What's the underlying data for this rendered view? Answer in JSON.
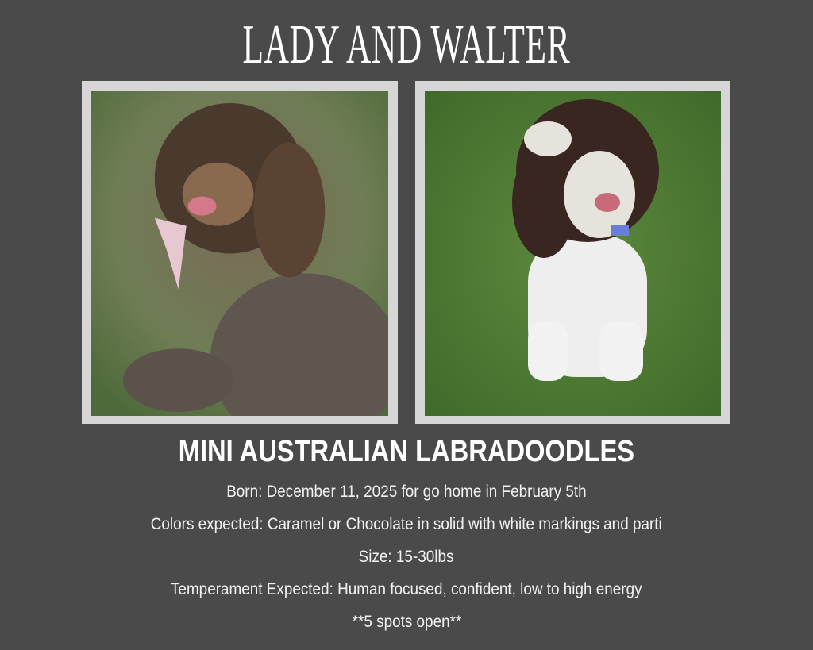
{
  "title": "LADY AND WALTER",
  "photos": {
    "left": {
      "subject": "Lady"
    },
    "right": {
      "subject": "Walter"
    }
  },
  "subtitle": "MINI AUSTRALIAN LABRADOODLES",
  "details": [
    "Born: December 11, 2025 for go home in February 5th",
    "Colors expected: Caramel or Chocolate in solid with white markings and parti",
    "Size: 15-30lbs",
    "Temperament Expected: Human focused, confident, low to high energy",
    "**5 spots open**"
  ],
  "colors": {
    "background": "#4a4a4a",
    "frame": "#d6d6d6",
    "text": "#ffffff"
  }
}
